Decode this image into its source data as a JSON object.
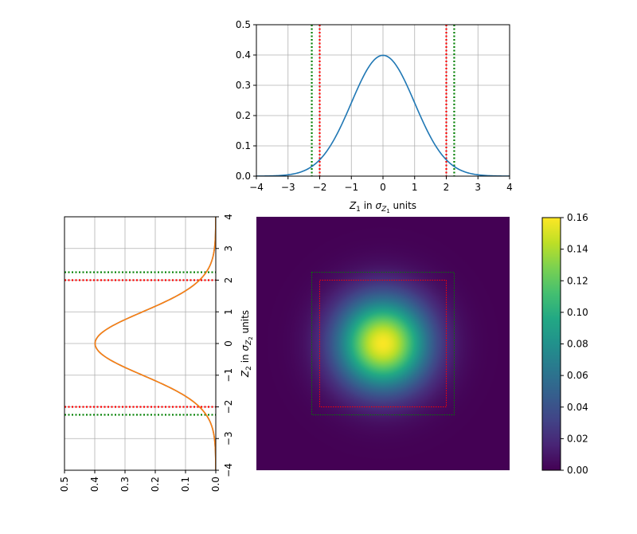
{
  "chart_data": [
    {
      "type": "line",
      "panel": "top-marginal",
      "xlabel_var": "Z",
      "xlabel_sub": "1",
      "xlabel_mid": " in ",
      "xlabel_sigma": "σ",
      "xlabel_sigma_sub": "Z",
      "xlabel_sigma_subsub": "1",
      "xlabel_tail": " units",
      "xlim": [
        -4,
        4
      ],
      "ylim": [
        0,
        0.5
      ],
      "xticks": [
        "−4",
        "−3",
        "−2",
        "−1",
        "0",
        "1",
        "2",
        "3",
        "4"
      ],
      "yticks": [
        "0.0",
        "0.1",
        "0.2",
        "0.3",
        "0.4",
        "0.5"
      ],
      "grid": true,
      "series": [
        {
          "curve": "standard normal pdf",
          "color": "#1f77b4",
          "peak": 0.399
        }
      ],
      "vlines": [
        {
          "x": -2.0,
          "color": "#ff0000",
          "style": "dotted"
        },
        {
          "x": 2.0,
          "color": "#ff0000",
          "style": "dotted"
        },
        {
          "x": -2.25,
          "color": "#008000",
          "style": "dotted"
        },
        {
          "x": 2.25,
          "color": "#008000",
          "style": "dotted"
        }
      ]
    },
    {
      "type": "line",
      "panel": "left-marginal",
      "ylabel_var": "Z",
      "ylabel_sub": "2",
      "ylabel_mid": " in ",
      "ylabel_sigma": "σ",
      "ylabel_sigma_sub": "Z",
      "ylabel_sigma_subsub": "2",
      "ylabel_tail": " units",
      "xlim": [
        0.5,
        0.0
      ],
      "ylim": [
        -4,
        4
      ],
      "xticks": [
        "0.5",
        "0.4",
        "0.3",
        "0.2",
        "0.1",
        "0.0"
      ],
      "yticks": [
        "−4",
        "−3",
        "−2",
        "−1",
        "0",
        "1",
        "2",
        "3",
        "4"
      ],
      "grid": true,
      "series": [
        {
          "curve": "standard normal pdf",
          "color": "#1f77b4"
        },
        {
          "curve": "standard normal pdf",
          "color": "#ff7f0e"
        }
      ],
      "hlines": [
        {
          "y": 2.0,
          "color": "#ff0000",
          "style": "dotted"
        },
        {
          "y": -2.0,
          "color": "#ff0000",
          "style": "dotted"
        },
        {
          "y": 2.25,
          "color": "#008000",
          "style": "dotted"
        },
        {
          "y": -2.25,
          "color": "#008000",
          "style": "dotted"
        }
      ]
    },
    {
      "type": "heatmap",
      "panel": "joint-density",
      "xlim": [
        -4,
        4
      ],
      "ylim": [
        -4,
        4
      ],
      "function": "bivariate standard normal pdf",
      "peak": 0.159,
      "colormap": "viridis",
      "boxes": [
        {
          "half_width": 2.0,
          "color": "#ff0000",
          "style": "dotted"
        },
        {
          "half_width": 2.25,
          "color": "#008000",
          "style": "dotted"
        }
      ]
    },
    {
      "type": "colorbar",
      "panel": "colorbar",
      "range": [
        0,
        0.16
      ],
      "ticks": [
        "0.00",
        "0.02",
        "0.04",
        "0.06",
        "0.08",
        "0.10",
        "0.12",
        "0.14",
        "0.16"
      ],
      "colormap": "viridis"
    }
  ]
}
